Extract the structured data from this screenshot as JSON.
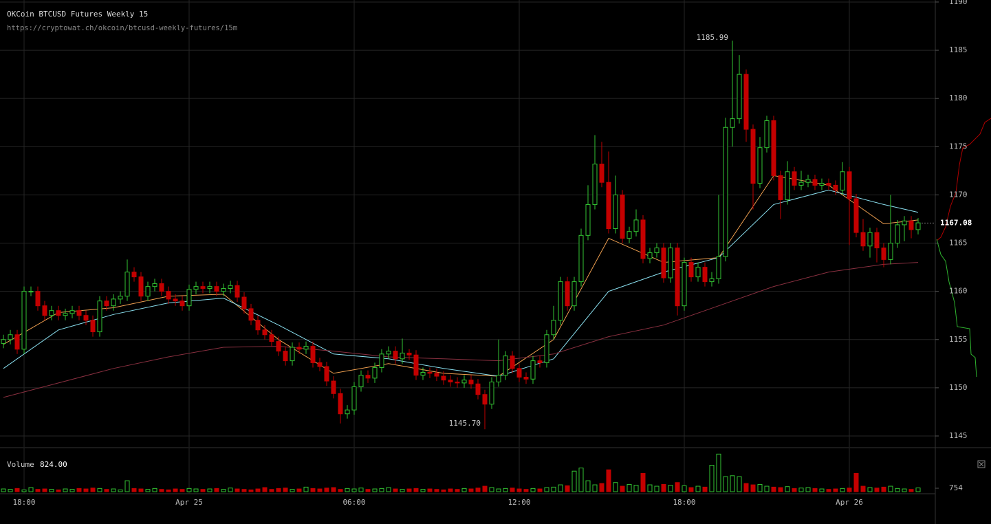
{
  "chart_data": {
    "type": "candlestick",
    "title": "OKCoin BTCUSD Futures Weekly 15",
    "subtitle": "https://cryptowat.ch/okcoin/btcusd-weekly-futures/15m",
    "up_color": "#33c633",
    "down_color": "#c40000",
    "xlim": [
      -0.5,
      135.5
    ],
    "xticks": [
      {
        "value": 3,
        "label": "18:00"
      },
      {
        "value": 27,
        "label": "Apr 25"
      },
      {
        "value": 51,
        "label": "06:00"
      },
      {
        "value": 75,
        "label": "12:00"
      },
      {
        "value": 99,
        "label": "18:00"
      },
      {
        "value": 123,
        "label": "Apr 26"
      }
    ],
    "ylim": [
      1143.86,
      1190.21
    ],
    "yticks": [
      1145,
      1150,
      1155,
      1160,
      1165,
      1170,
      1175,
      1180,
      1185,
      1190
    ],
    "grid": true,
    "open": [
      1154.6,
      1155,
      1155.5,
      1154,
      1160,
      1160,
      1158.5,
      1157.5,
      1158,
      1157.5,
      1157.7,
      1158,
      1157.5,
      1157,
      1155.8,
      1159,
      1158.5,
      1159.2,
      1159.5,
      1162,
      1161.5,
      1159.5,
      1160.5,
      1160.8,
      1160,
      1159.2,
      1159,
      1158.5,
      1160.2,
      1160.5,
      1160.3,
      1160.5,
      1160,
      1160.3,
      1160.6,
      1159.4,
      1158.2,
      1157,
      1156,
      1155.5,
      1154.8,
      1153.8,
      1152.8,
      1154.2,
      1154,
      1154.3,
      1152.6,
      1152.2,
      1150.7,
      1149.4,
      1147.3,
      1147.7,
      1150.1,
      1151.3,
      1151,
      1152.1,
      1153.5,
      1153.8,
      1153,
      1153.6,
      1153.4,
      1151.3,
      1151.6,
      1151.5,
      1151.2,
      1150.8,
      1150.6,
      1150.5,
      1150.8,
      1150.4,
      1149.3,
      1148.3,
      1150.6,
      1151.3,
      1153.3,
      1152,
      1151.1,
      1150.9,
      1152.8,
      1152.6,
      1155.5,
      1157,
      1161,
      1158.5,
      1161,
      1165.8,
      1169,
      1173.2,
      1171.3,
      1166.5,
      1170,
      1165.5,
      1166.2,
      1167.4,
      1163.4,
      1164,
      1164.5,
      1161.4,
      1164.5,
      1158.5,
      1163,
      1161.5,
      1162.5,
      1161,
      1161.3,
      1163.6,
      1177,
      1177.9,
      1182.5,
      1176.8,
      1171.2,
      1174.9,
      1177.7,
      1172,
      1169.5,
      1172.4,
      1171,
      1171.3,
      1171.6,
      1171,
      1171.2,
      1171,
      1170.5,
      1172.4,
      1169.6,
      1166.1,
      1164.7,
      1166.1,
      1164.5,
      1163.3,
      1165,
      1166.9,
      1167.3,
      1166.4
    ],
    "high": [
      1155.5,
      1156,
      1156,
      1160.5,
      1160.5,
      1160.5,
      1159,
      1158.5,
      1158.5,
      1158.2,
      1158.5,
      1158.5,
      1158,
      1157.5,
      1159.5,
      1159.5,
      1159.7,
      1160,
      1163.3,
      1162.5,
      1162,
      1161,
      1161.3,
      1161.3,
      1160.5,
      1159.7,
      1159.5,
      1160.7,
      1161,
      1161,
      1161,
      1161,
      1160.8,
      1161.1,
      1161.1,
      1159.9,
      1158.7,
      1157.5,
      1156.5,
      1156,
      1155.3,
      1154.3,
      1154.7,
      1154.7,
      1154.8,
      1154.8,
      1153.1,
      1152.7,
      1151.2,
      1149.9,
      1148.2,
      1150.6,
      1151.8,
      1151.8,
      1152.6,
      1154,
      1154.3,
      1154.3,
      1155.1,
      1154,
      1153.9,
      1152.1,
      1152.1,
      1152,
      1151.7,
      1151.3,
      1151.1,
      1151.3,
      1151.3,
      1150.9,
      1149.8,
      1151.1,
      1155,
      1153.8,
      1153.8,
      1152.5,
      1151.6,
      1153.3,
      1153.3,
      1156,
      1158.5,
      1161.5,
      1161.5,
      1161.5,
      1166.5,
      1171,
      1176.2,
      1175.5,
      1174.5,
      1172,
      1170.5,
      1166.7,
      1168.5,
      1167.9,
      1164.5,
      1165,
      1165,
      1165,
      1165,
      1163.5,
      1163.5,
      1163,
      1163,
      1162,
      1170,
      1178,
      1185.99,
      1184.5,
      1183,
      1177.3,
      1176,
      1178.2,
      1178.2,
      1172.5,
      1173.5,
      1172.9,
      1172.5,
      1172.1,
      1172.1,
      1171.7,
      1171.7,
      1171.5,
      1173.4,
      1172.9,
      1170.1,
      1167.5,
      1166.6,
      1166.6,
      1165,
      1170,
      1167.4,
      1167.8,
      1167.8,
      1167.6
    ],
    "low": [
      1154.1,
      1154.5,
      1153.5,
      1153.5,
      1159.5,
      1158,
      1157,
      1157,
      1157,
      1157,
      1157.2,
      1157,
      1156.5,
      1155.3,
      1155.3,
      1158,
      1158,
      1158.7,
      1159,
      1161,
      1159,
      1159,
      1160,
      1159.5,
      1158.7,
      1158.5,
      1158,
      1158,
      1159.7,
      1159.8,
      1159.8,
      1159.5,
      1159.5,
      1159.8,
      1158.9,
      1157.7,
      1156.5,
      1155.5,
      1155,
      1154.3,
      1153.3,
      1152.3,
      1152.3,
      1153.5,
      1153.5,
      1152.1,
      1151.7,
      1150.2,
      1148.9,
      1146.3,
      1146.8,
      1147.2,
      1149.6,
      1150.5,
      1150.5,
      1151.6,
      1153,
      1152.5,
      1152.5,
      1152.9,
      1150.8,
      1150.8,
      1151,
      1150.7,
      1150.3,
      1150.1,
      1150,
      1150,
      1149.9,
      1148.8,
      1145.7,
      1147.8,
      1150.1,
      1150.8,
      1151.5,
      1150.6,
      1150.4,
      1150.4,
      1152.1,
      1152.1,
      1155,
      1156.5,
      1158,
      1158,
      1160.5,
      1165.3,
      1168.5,
      1170.8,
      1166,
      1166,
      1165,
      1165,
      1165.7,
      1162.9,
      1162.9,
      1163.5,
      1160.9,
      1160.9,
      1157.5,
      1158,
      1161,
      1161,
      1160.5,
      1160.5,
      1160.8,
      1163.1,
      1175,
      1177.4,
      1175.5,
      1168.5,
      1170.7,
      1174.4,
      1171.5,
      1167.5,
      1169,
      1170.5,
      1170.5,
      1170.8,
      1170.5,
      1170.5,
      1170.5,
      1170,
      1170,
      1164.8,
      1165.6,
      1164.2,
      1163.5,
      1163,
      1162.5,
      1162.8,
      1164.5,
      1165.2,
      1165.5,
      1165.9
    ],
    "close": [
      1155,
      1155.5,
      1154,
      1160,
      1160,
      1158.5,
      1157.5,
      1158,
      1157.5,
      1157.7,
      1158,
      1157.5,
      1157,
      1155.8,
      1159,
      1158.5,
      1159.2,
      1159.5,
      1162,
      1161.5,
      1159.5,
      1160.5,
      1160.8,
      1160,
      1159.2,
      1159,
      1158.5,
      1160.2,
      1160.5,
      1160.3,
      1160.5,
      1160,
      1160.3,
      1160.6,
      1159.4,
      1158.2,
      1157,
      1156,
      1155.5,
      1154.8,
      1153.8,
      1152.8,
      1154.2,
      1154,
      1154.3,
      1152.6,
      1152.2,
      1150.7,
      1149.4,
      1147.3,
      1147.7,
      1150.1,
      1151.3,
      1151,
      1152.1,
      1153.5,
      1153.8,
      1153,
      1153.6,
      1153.4,
      1151.3,
      1151.6,
      1151.5,
      1151.2,
      1150.8,
      1150.6,
      1150.5,
      1150.8,
      1150.4,
      1149.3,
      1148.3,
      1150.6,
      1151.3,
      1153.3,
      1152,
      1151.1,
      1150.9,
      1152.8,
      1152.6,
      1155.5,
      1157,
      1161,
      1158.5,
      1161,
      1165.8,
      1169,
      1173.2,
      1171.3,
      1166.5,
      1170,
      1165.5,
      1166.2,
      1167.4,
      1163.4,
      1164,
      1164.5,
      1161.4,
      1164.5,
      1158.5,
      1163,
      1161.5,
      1162.5,
      1161,
      1161.3,
      1163.6,
      1177,
      1177.9,
      1182.5,
      1176.8,
      1171.2,
      1174.9,
      1177.7,
      1172,
      1169.5,
      1172.4,
      1171,
      1171.3,
      1171.6,
      1171,
      1171.2,
      1171,
      1170.5,
      1172.4,
      1169.6,
      1166.1,
      1164.7,
      1166.1,
      1164.5,
      1163.3,
      1165,
      1166.9,
      1167.3,
      1166.4,
      1167.1
    ],
    "annotations": [
      {
        "index": 106,
        "label": "1185.99"
      },
      {
        "index": 70,
        "label": "1145.70"
      }
    ],
    "last_price": 1167.08,
    "indicators": [
      {
        "color": "#f0a050",
        "x": [
          0,
          8,
          16,
          24,
          32,
          40,
          48,
          56,
          64,
          72,
          80,
          88,
          96,
          104,
          112,
          120,
          128,
          133
        ],
        "values": [
          1154.5,
          1157.8,
          1158.3,
          1159.5,
          1159.7,
          1155,
          1151.5,
          1152.5,
          1151.5,
          1151.2,
          1155,
          1165.5,
          1163,
          1163.5,
          1172,
          1171,
          1167,
          1167.4
        ]
      },
      {
        "color": "#8ae0f0",
        "x": [
          0,
          8,
          16,
          24,
          32,
          40,
          48,
          56,
          64,
          72,
          80,
          88,
          96,
          104,
          112,
          120,
          128,
          133
        ],
        "values": [
          1152,
          1156,
          1157.6,
          1158.8,
          1159.3,
          1156.5,
          1153.5,
          1153,
          1152,
          1151.2,
          1153,
          1160,
          1162,
          1163.5,
          1169,
          1170.5,
          1169,
          1168.2
        ]
      },
      {
        "color": "#8a3040",
        "x": [
          0,
          8,
          16,
          24,
          32,
          40,
          48,
          56,
          64,
          72,
          80,
          88,
          96,
          104,
          112,
          120,
          128,
          133
        ],
        "values": [
          1149,
          1150.5,
          1152,
          1153.2,
          1154.2,
          1154.3,
          1153.8,
          1153.2,
          1153,
          1152.8,
          1153.5,
          1155.3,
          1156.5,
          1158.5,
          1160.5,
          1162,
          1162.8,
          1163
        ]
      }
    ],
    "volume_title": "Volume",
    "volume_readout": "824.00",
    "vlim": [
      0,
      8300
    ],
    "vticks": [
      754
    ],
    "volume": [
      600,
      500,
      700,
      400,
      900,
      500,
      600,
      500,
      400,
      600,
      500,
      700,
      600,
      800,
      700,
      500,
      600,
      400,
      2400,
      700,
      600,
      500,
      700,
      500,
      400,
      600,
      500,
      700,
      600,
      500,
      600,
      700,
      500,
      800,
      600,
      500,
      400,
      600,
      900,
      500,
      700,
      800,
      500,
      600,
      1000,
      700,
      600,
      800,
      900,
      500,
      700,
      600,
      800,
      500,
      600,
      700,
      900,
      600,
      500,
      600,
      700,
      500,
      600,
      500,
      400,
      600,
      500,
      700,
      600,
      800,
      1200,
      900,
      600,
      700,
      800,
      600,
      500,
      700,
      600,
      900,
      1000,
      1500,
      1300,
      4500,
      5200,
      2400,
      1500,
      1800,
      4800,
      2000,
      1200,
      1600,
      1400,
      4000,
      1500,
      1200,
      1600,
      1400,
      2000,
      1300,
      900,
      1200,
      1000,
      5800,
      8250,
      3300,
      3500,
      3300,
      1800,
      1500,
      1600,
      1200,
      1000,
      900,
      1100,
      700,
      800,
      900,
      700,
      600,
      500,
      600,
      700,
      800,
      4000,
      1200,
      900,
      800,
      1000,
      1200,
      700,
      600,
      500,
      824
    ]
  }
}
